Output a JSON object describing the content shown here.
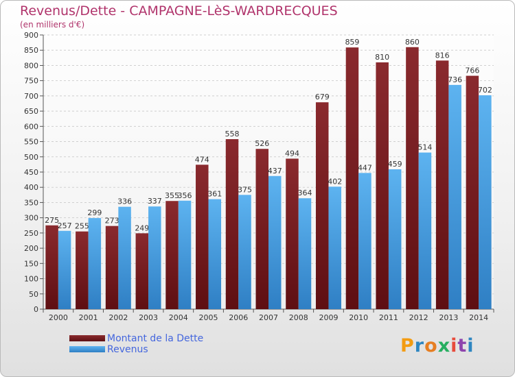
{
  "title": "Revenus/Dette - CAMPAGNE-LèS-WARDRECQUES",
  "subtitle": "(en milliers d'€)",
  "logo": {
    "letters": [
      "P",
      "r",
      "o",
      "x",
      "i",
      "t",
      "i"
    ],
    "colors": [
      "#f39c12",
      "#2e86c1",
      "#e67e22",
      "#27ae60",
      "#e74c3c",
      "#8e44ad",
      "#2e86c1"
    ]
  },
  "chart_data": {
    "type": "bar",
    "categories": [
      "2000",
      "2001",
      "2002",
      "2003",
      "2004",
      "2005",
      "2006",
      "2007",
      "2008",
      "2009",
      "2010",
      "2011",
      "2012",
      "2013",
      "2014"
    ],
    "series": [
      {
        "name": "Montant de la Dette",
        "color": "#7a1a1f",
        "values": [
          275,
          255,
          273,
          249,
          355,
          474,
          558,
          526,
          494,
          679,
          859,
          810,
          860,
          816,
          766
        ]
      },
      {
        "name": "Revenus",
        "color": "#4aa3e6",
        "values": [
          257,
          299,
          336,
          337,
          356,
          361,
          375,
          437,
          364,
          402,
          447,
          459,
          514,
          736,
          702
        ]
      }
    ],
    "ylim": [
      0,
      900
    ],
    "yticks": [
      0,
      50,
      100,
      150,
      200,
      250,
      300,
      350,
      400,
      450,
      500,
      550,
      600,
      650,
      700,
      750,
      800,
      850,
      900
    ],
    "grid": true,
    "legend": "bottom-left"
  }
}
